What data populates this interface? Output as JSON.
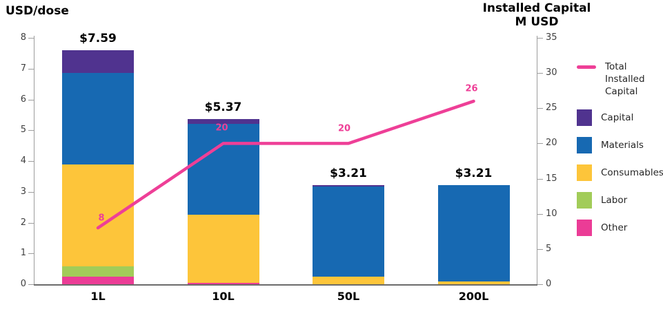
{
  "page": {
    "left_axis_title": "USD/dose",
    "right_axis_title": [
      "Installed Capital",
      "M USD"
    ]
  },
  "chart_data": {
    "type": "combo-stacked-bar-line",
    "categories": [
      "1L",
      "10L",
      "50L",
      "200L"
    ],
    "bar_value_labels": [
      "$7.59",
      "$5.37",
      "$3.21",
      "$3.21"
    ],
    "bar_totals": [
      7.59,
      5.37,
      3.21,
      3.21
    ],
    "bar_series": [
      {
        "name": "Other",
        "color": "#EB3C96",
        "values": [
          0.25,
          0.05,
          0.0,
          0.0
        ]
      },
      {
        "name": "Labor",
        "color": "#A2CC59",
        "values": [
          0.32,
          0.0,
          0.0,
          0.0
        ]
      },
      {
        "name": "Consumables",
        "color": "#FDC53A",
        "values": [
          3.31,
          2.2,
          0.25,
          0.1
        ]
      },
      {
        "name": "Materials",
        "color": "#1769B2",
        "values": [
          2.97,
          2.95,
          2.93,
          3.11
        ]
      },
      {
        "name": "Capital",
        "color": "#50338F",
        "values": [
          0.74,
          0.17,
          0.03,
          0.0
        ]
      }
    ],
    "line_series": {
      "name": "Total Installed Capital",
      "color": "#EE3F97",
      "values": [
        8,
        20,
        20,
        26
      ],
      "point_labels": [
        "8",
        "20",
        "20",
        "26"
      ]
    },
    "left_axis": {
      "title": "USD/dose",
      "min": 0,
      "max": 8,
      "ticks": [
        "0",
        "1",
        "2",
        "3",
        "4",
        "5",
        "6",
        "7",
        "8"
      ]
    },
    "right_axis": {
      "title": "Installed Capital M USD",
      "min": 0,
      "max": 35,
      "ticks": [
        "0",
        "5",
        "10",
        "15",
        "20",
        "25",
        "30",
        "35"
      ]
    },
    "legend": [
      {
        "label": "Total Installed Capital",
        "swatch": "line",
        "color": "#EE3F97"
      },
      {
        "label": "Capital",
        "swatch": "square",
        "color": "#50338F"
      },
      {
        "label": "Materials",
        "swatch": "square",
        "color": "#1769B2"
      },
      {
        "label": "Consumables",
        "swatch": "square",
        "color": "#FDC53A"
      },
      {
        "label": "Labor",
        "swatch": "square",
        "color": "#A2CC59"
      },
      {
        "label": "Other",
        "swatch": "square",
        "color": "#EB3C96"
      }
    ]
  }
}
